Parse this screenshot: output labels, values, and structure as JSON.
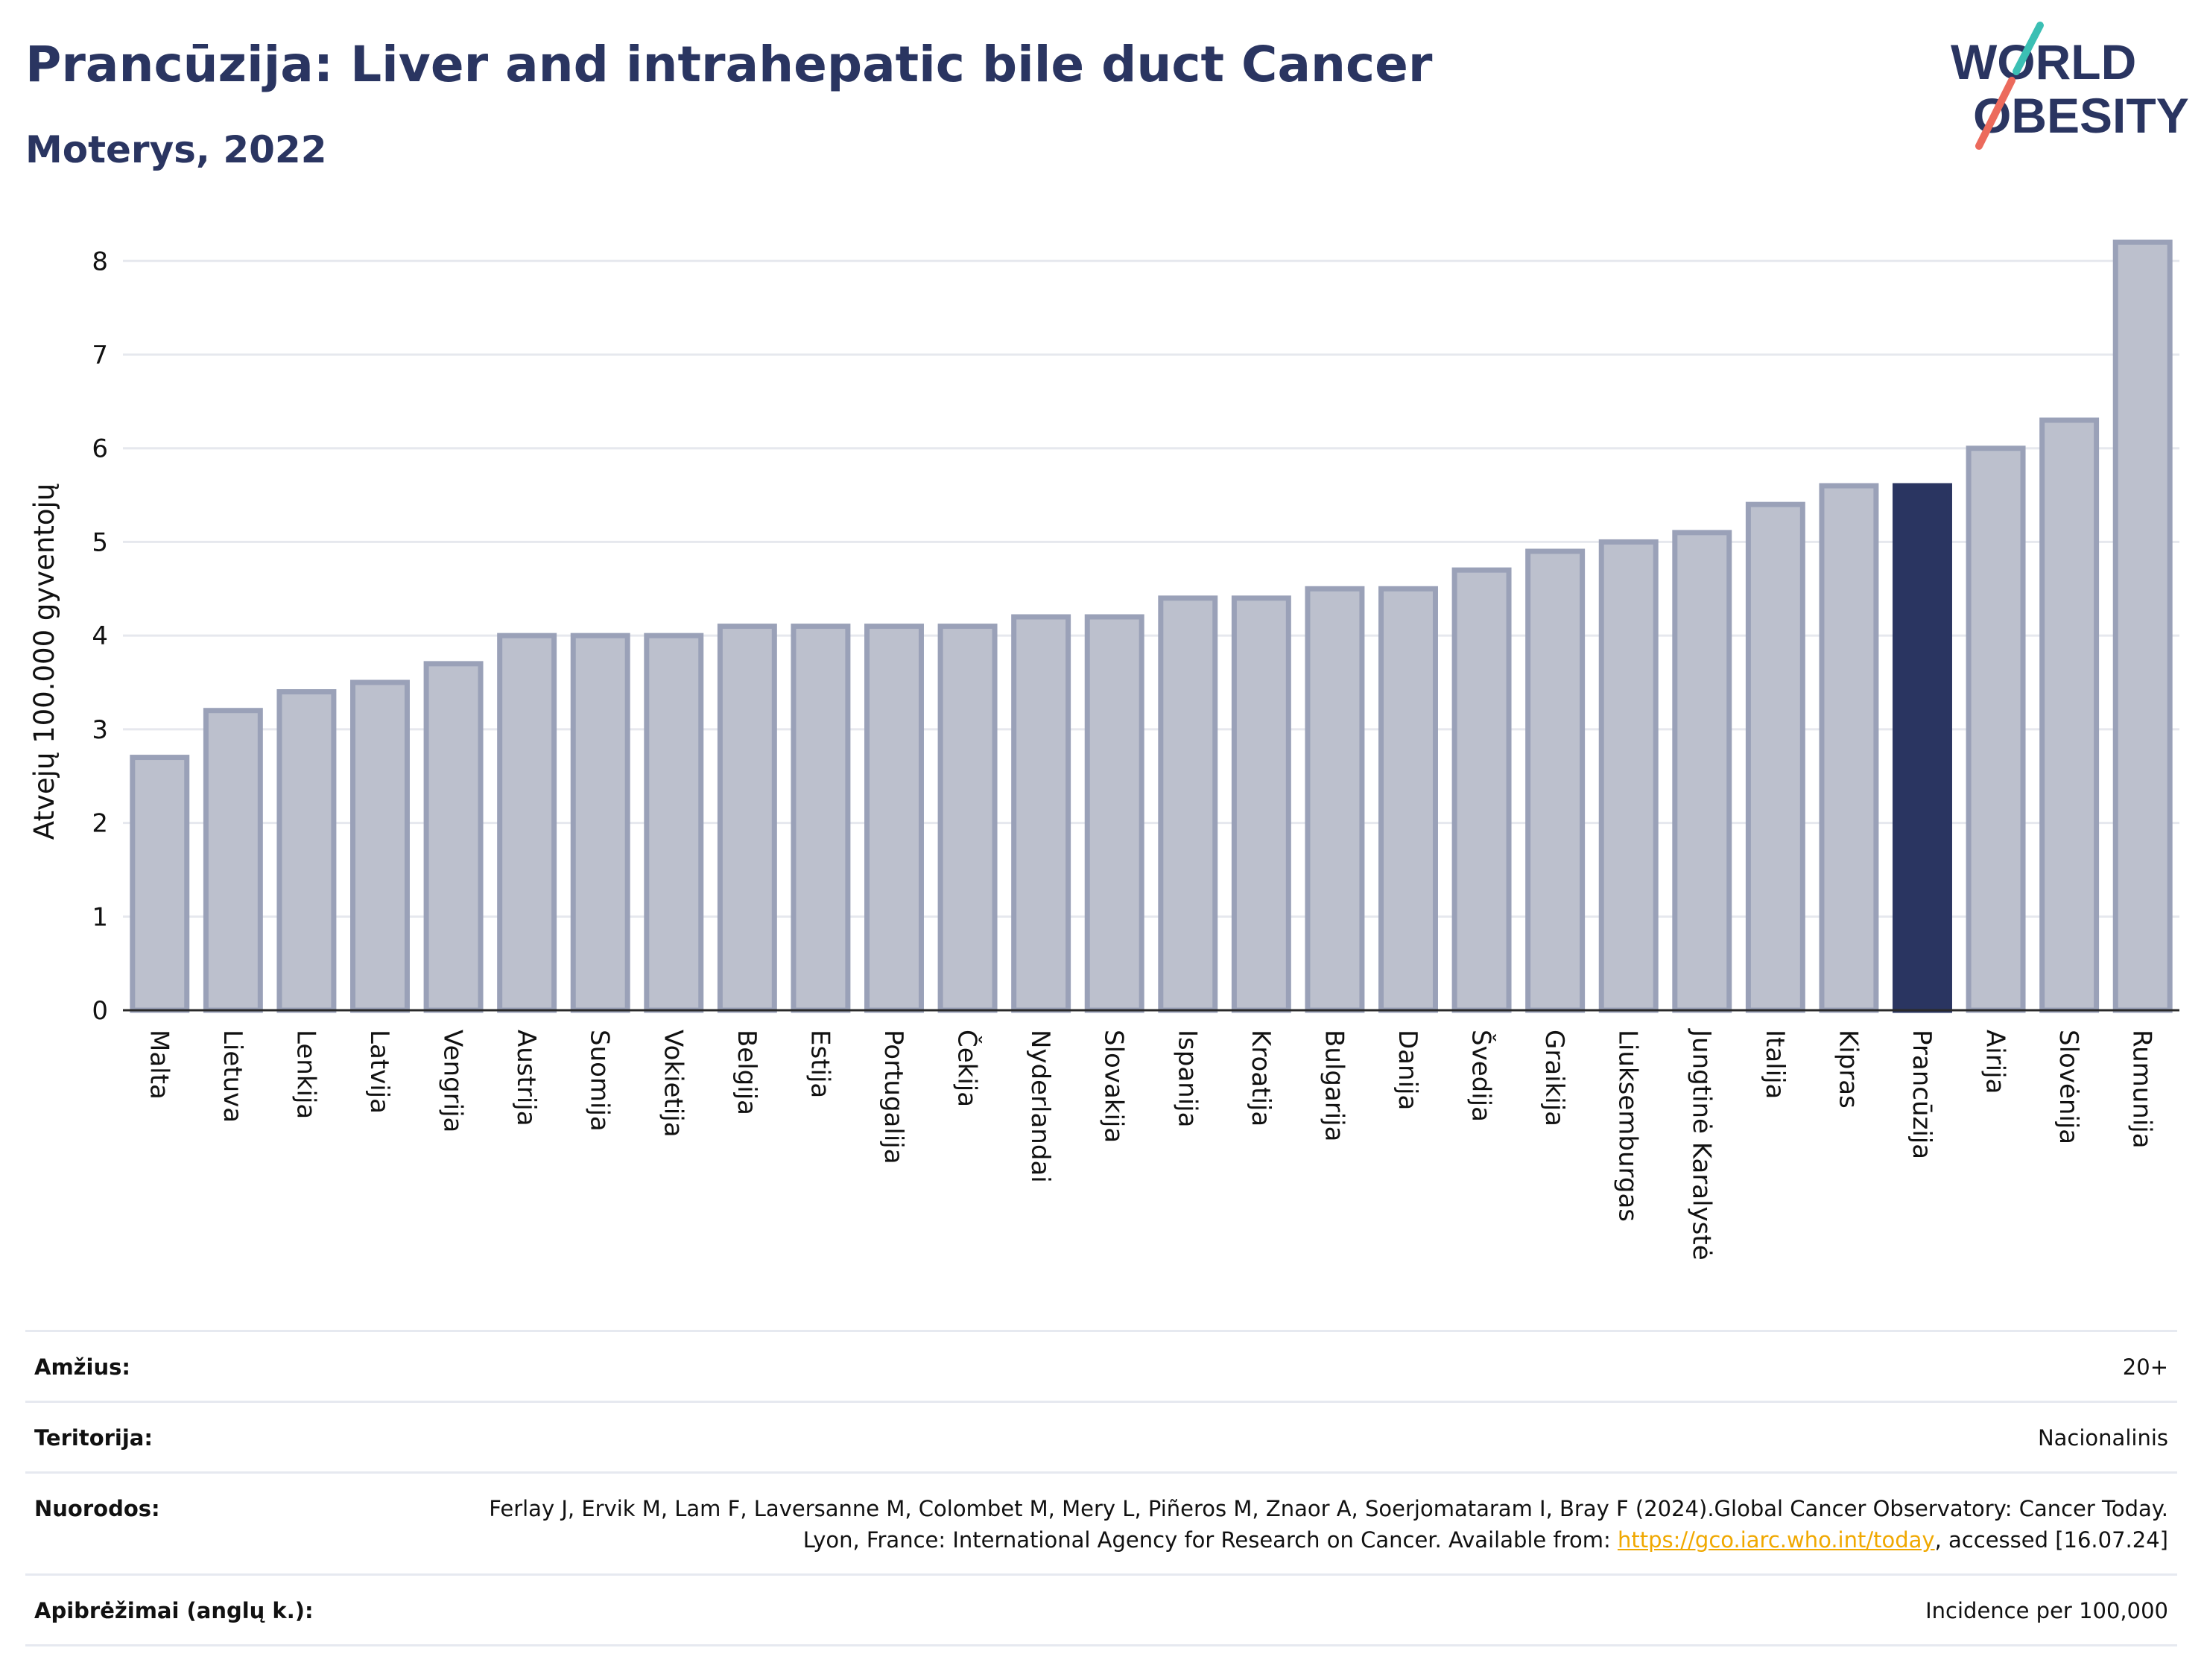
{
  "header": {
    "title": "Prancūzija: Liver and intrahepatic bile duct Cancer",
    "subtitle": "Moterys, 2022",
    "logo_line1": "WORLD",
    "logo_line2": "OBESITY"
  },
  "colors": {
    "bar": "#bcc0cd",
    "bar_border": "#9aa1b8",
    "highlight": "#2a3561",
    "text": "#2a3561",
    "grid": "#e6e8ee",
    "link": "#f0a800",
    "logo_teal": "#3bbfb4",
    "logo_coral": "#ec6a5c"
  },
  "chart_data": {
    "type": "bar",
    "ylabel": "Atvejų 100.000 gyventojų",
    "ylim": [
      0,
      8.4
    ],
    "yticks": [
      0,
      1,
      2,
      3,
      4,
      5,
      6,
      7,
      8
    ],
    "grid": true,
    "highlight": "Prancūzija",
    "categories": [
      "Malta",
      "Lietuva",
      "Lenkija",
      "Latvija",
      "Vengrija",
      "Austrija",
      "Suomija",
      "Vokietija",
      "Belgija",
      "Estija",
      "Portugalija",
      "Čekija",
      "Nyderlandai",
      "Slovakija",
      "Ispanija",
      "Kroatija",
      "Bulgarija",
      "Danija",
      "Švedija",
      "Graikija",
      "Liuksemburgas",
      "Jungtinė Karalystė",
      "Italija",
      "Kipras",
      "Prancūzija",
      "Airija",
      "Slovėnija",
      "Rumunija"
    ],
    "values": [
      2.7,
      3.2,
      3.4,
      3.5,
      3.7,
      4.0,
      4.0,
      4.0,
      4.1,
      4.1,
      4.1,
      4.1,
      4.2,
      4.2,
      4.4,
      4.4,
      4.5,
      4.5,
      4.7,
      4.9,
      5.0,
      5.1,
      5.4,
      5.6,
      5.6,
      6.0,
      6.3,
      8.2
    ]
  },
  "info": {
    "rows": [
      {
        "label": "Amžius:",
        "value": "20+"
      },
      {
        "label": "Teritorija:",
        "value": "Nacionalinis"
      },
      {
        "label": "Nuorodos:",
        "value_before": "Ferlay J, Ervik M, Lam F, Laversanne M, Colombet M, Mery L, Piñeros M, Znaor A, Soerjomataram I, Bray F (2024).Global Cancer Observatory: Cancer Today. Lyon, France: International Agency for Research on Cancer. Available from: ",
        "link": "https://gco.iarc.who.int/today",
        "value_after": ", accessed [16.07.24]"
      },
      {
        "label": "Apibrėžimai (anglų k.):",
        "value": "Incidence per 100,000"
      }
    ]
  }
}
